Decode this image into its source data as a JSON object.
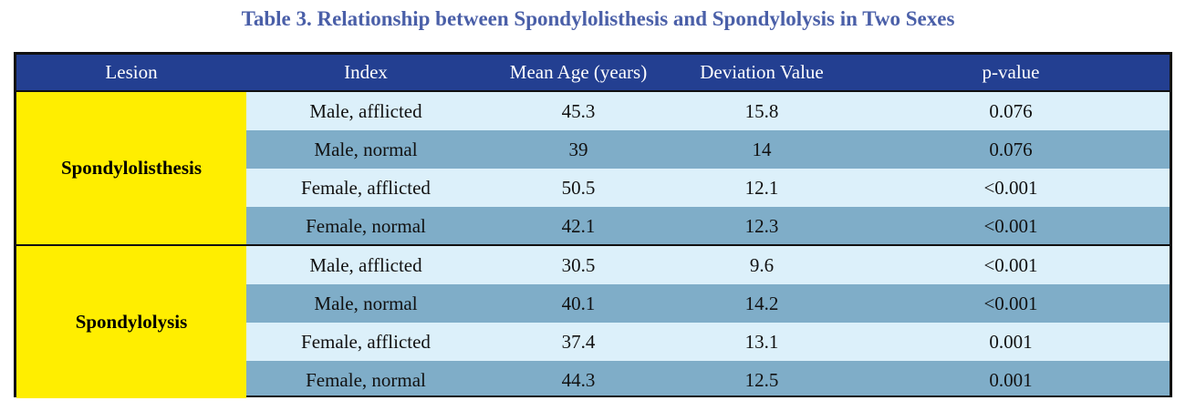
{
  "title": "Table 3. Relationship between Spondylolisthesis and Spondylolysis in Two Sexes",
  "headers": {
    "lesion": "Lesion",
    "index": "Index",
    "mean_age": "Mean Age (years)",
    "deviation": "Deviation Value",
    "p_value": "p-value"
  },
  "groups": [
    {
      "lesion": "Spondylolisthesis",
      "rows": [
        {
          "index": "Male, afflicted",
          "mean_age": "45.3",
          "deviation": "15.8",
          "p_value": "0.076"
        },
        {
          "index": "Male, normal",
          "mean_age": "39",
          "deviation": "14",
          "p_value": "0.076"
        },
        {
          "index": "Female, afflicted",
          "mean_age": "50.5",
          "deviation": "12.1",
          "p_value": "<0.001"
        },
        {
          "index": "Female, normal",
          "mean_age": "42.1",
          "deviation": "12.3",
          "p_value": "<0.001"
        }
      ]
    },
    {
      "lesion": "Spondylolysis",
      "rows": [
        {
          "index": "Male, afflicted",
          "mean_age": "30.5",
          "deviation": "9.6",
          "p_value": "<0.001"
        },
        {
          "index": "Male, normal",
          "mean_age": "40.1",
          "deviation": "14.2",
          "p_value": "<0.001"
        },
        {
          "index": "Female, afflicted",
          "mean_age": "37.4",
          "deviation": "13.1",
          "p_value": "0.001"
        },
        {
          "index": "Female, normal",
          "mean_age": "44.3",
          "deviation": "12.5",
          "p_value": "0.001"
        }
      ]
    }
  ],
  "colors": {
    "title": "#4a5fa8",
    "header_bg": "#233f91",
    "lesion_bg": "#ffee00",
    "row_light": "#dcf0fa",
    "row_dark": "#7fadc8"
  }
}
